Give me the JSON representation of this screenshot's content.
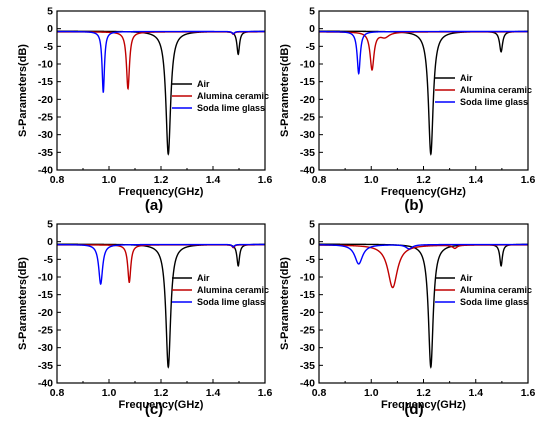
{
  "chart_data": [
    {
      "type": "line",
      "panel_label": "(a)",
      "xlabel": "Frequency(GHz)",
      "ylabel": "S-Parameters(dB)",
      "xlim": [
        0.8,
        1.6
      ],
      "ylim": [
        -40,
        5
      ],
      "x_ticks": [
        0.8,
        1.0,
        1.2,
        1.4,
        1.6
      ],
      "x_tick_labels": [
        "0.8",
        "1.0",
        "1.2",
        "1.4",
        "1.6"
      ],
      "y_ticks": [
        5,
        0,
        -5,
        -10,
        -15,
        -20,
        -25,
        -30,
        -35,
        -40
      ],
      "y_tick_labels": [
        "5",
        "0",
        "-5",
        "-10",
        "-15",
        "-20",
        "-25",
        "-30",
        "-35",
        "-40"
      ],
      "legend_position": "center-right",
      "series": [
        {
          "name": "Air",
          "color": "#000000",
          "baseline": -0.7,
          "dips": [
            {
              "f": 1.228,
              "depth": -35.5,
              "width": 0.011
            },
            {
              "f": 1.497,
              "depth": -7.2,
              "width": 0.006
            }
          ]
        },
        {
          "name": "Alumina ceramic",
          "color": "#c00000",
          "baseline": -0.9,
          "dips": [
            {
              "f": 1.073,
              "depth": -17.0,
              "width": 0.007
            },
            {
              "f": 1.478,
              "depth": -1.6,
              "width": 0.005
            }
          ]
        },
        {
          "name": "Soda lime glass",
          "color": "#0000ff",
          "baseline": -0.8,
          "dips": [
            {
              "f": 0.978,
              "depth": -18.0,
              "width": 0.0055
            },
            {
              "f": 1.478,
              "depth": -1.5,
              "width": 0.005
            }
          ]
        }
      ]
    },
    {
      "type": "line",
      "panel_label": "(b)",
      "xlabel": "Frequency(GHz)",
      "ylabel": "S-Parameters(dB)",
      "xlim": [
        0.8,
        1.6
      ],
      "ylim": [
        -40,
        5
      ],
      "x_ticks": [
        0.8,
        1.0,
        1.2,
        1.4,
        1.6
      ],
      "x_tick_labels": [
        "0.8",
        "1.0",
        "1.2",
        "1.4",
        "1.6"
      ],
      "y_ticks": [
        5,
        0,
        -5,
        -10,
        -15,
        -20,
        -25,
        -30,
        -35,
        -40
      ],
      "y_tick_labels": [
        "5",
        "0",
        "-5",
        "-10",
        "-15",
        "-20",
        "-25",
        "-30",
        "-35",
        "-40"
      ],
      "legend_position": "center-right",
      "series": [
        {
          "name": "Air",
          "color": "#000000",
          "baseline": -0.7,
          "dips": [
            {
              "f": 1.228,
              "depth": -35.5,
              "width": 0.011
            },
            {
              "f": 1.497,
              "depth": -6.5,
              "width": 0.007
            }
          ]
        },
        {
          "name": "Alumina ceramic",
          "color": "#c00000",
          "baseline": -0.9,
          "dips": [
            {
              "f": 1.003,
              "depth": -11.5,
              "width": 0.009
            },
            {
              "f": 1.052,
              "depth": -2.3,
              "width": 0.02
            }
          ]
        },
        {
          "name": "Soda lime glass",
          "color": "#0000ff",
          "baseline": -0.8,
          "dips": [
            {
              "f": 0.952,
              "depth": -12.7,
              "width": 0.007
            }
          ]
        }
      ]
    },
    {
      "type": "line",
      "panel_label": "(c)",
      "xlabel": "Frequency(GHz)",
      "ylabel": "S-Parameters(dB)",
      "xlim": [
        0.8,
        1.6
      ],
      "ylim": [
        -40,
        5
      ],
      "x_ticks": [
        0.8,
        1.0,
        1.2,
        1.4,
        1.6
      ],
      "x_tick_labels": [
        "0.8",
        "1.0",
        "1.2",
        "1.4",
        "1.6"
      ],
      "y_ticks": [
        5,
        0,
        -5,
        -10,
        -15,
        -20,
        -25,
        -30,
        -35,
        -40
      ],
      "y_tick_labels": [
        "5",
        "0",
        "-5",
        "-10",
        "-15",
        "-20",
        "-25",
        "-30",
        "-35",
        "-40"
      ],
      "legend_position": "center-right",
      "series": [
        {
          "name": "Air",
          "color": "#000000",
          "baseline": -0.7,
          "dips": [
            {
              "f": 1.228,
              "depth": -35.5,
              "width": 0.011
            },
            {
              "f": 1.497,
              "depth": -6.8,
              "width": 0.006
            }
          ]
        },
        {
          "name": "Alumina ceramic",
          "color": "#c00000",
          "baseline": -0.9,
          "dips": [
            {
              "f": 1.078,
              "depth": -11.5,
              "width": 0.007
            },
            {
              "f": 1.478,
              "depth": -1.7,
              "width": 0.005
            }
          ]
        },
        {
          "name": "Soda lime glass",
          "color": "#0000ff",
          "baseline": -0.8,
          "dips": [
            {
              "f": 0.968,
              "depth": -12.0,
              "width": 0.009
            },
            {
              "f": 1.478,
              "depth": -1.5,
              "width": 0.005
            }
          ]
        }
      ]
    },
    {
      "type": "line",
      "panel_label": "(d)",
      "xlabel": "Frequency(GHz)",
      "ylabel": "S-Parameters(dB)",
      "xlim": [
        0.8,
        1.6
      ],
      "ylim": [
        -40,
        5
      ],
      "x_ticks": [
        0.8,
        1.0,
        1.2,
        1.4,
        1.6
      ],
      "x_tick_labels": [
        "0.8",
        "1.0",
        "1.2",
        "1.4",
        "1.6"
      ],
      "y_ticks": [
        5,
        0,
        -5,
        -10,
        -15,
        -20,
        -25,
        -30,
        -35,
        -40
      ],
      "y_tick_labels": [
        "5",
        "0",
        "-5",
        "-10",
        "-15",
        "-20",
        "-25",
        "-30",
        "-35",
        "-40"
      ],
      "legend_position": "center-right",
      "series": [
        {
          "name": "Air",
          "color": "#000000",
          "baseline": -0.7,
          "dips": [
            {
              "f": 1.228,
              "depth": -35.5,
              "width": 0.011
            },
            {
              "f": 1.497,
              "depth": -6.8,
              "width": 0.006
            }
          ]
        },
        {
          "name": "Alumina ceramic",
          "color": "#c00000",
          "baseline": -0.9,
          "dips": [
            {
              "f": 1.082,
              "depth": -13.0,
              "width": 0.022
            },
            {
              "f": 1.32,
              "depth": -1.8,
              "width": 0.01
            }
          ]
        },
        {
          "name": "Soda lime glass",
          "color": "#0000ff",
          "baseline": -0.8,
          "dips": [
            {
              "f": 0.952,
              "depth": -6.3,
              "width": 0.018
            },
            {
              "f": 1.145,
              "depth": -2.0,
              "width": 0.015
            }
          ]
        }
      ]
    }
  ]
}
